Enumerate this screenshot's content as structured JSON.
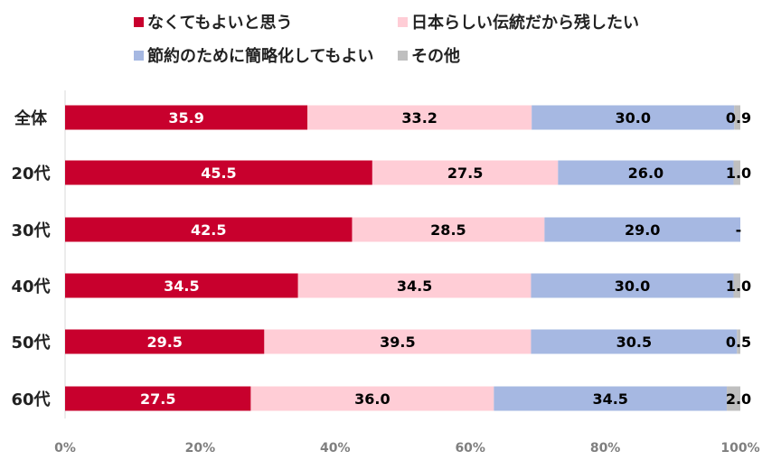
{
  "chart_data": {
    "type": "bar",
    "orientation": "horizontal",
    "stacked": true,
    "categories": [
      "全体",
      "20代",
      "30代",
      "40代",
      "50代",
      "60代"
    ],
    "series": [
      {
        "name": "なくてもよいと思う",
        "color": "#c8002d",
        "label_color": "#ffffff",
        "values": [
          35.9,
          45.5,
          42.5,
          34.5,
          29.5,
          27.5
        ],
        "labels": [
          "35.9",
          "45.5",
          "42.5",
          "34.5",
          "29.5",
          "27.5"
        ]
      },
      {
        "name": "日本らしい伝統だから残したい",
        "color": "#ffcdd6",
        "label_color": "#000000",
        "values": [
          33.2,
          27.5,
          28.5,
          34.5,
          39.5,
          36.0
        ],
        "labels": [
          "33.2",
          "27.5",
          "28.5",
          "34.5",
          "39.5",
          "36.0"
        ]
      },
      {
        "name": "節約のために簡略化してもよい",
        "color": "#a6b8e2",
        "label_color": "#000000",
        "values": [
          30.0,
          26.0,
          29.0,
          30.0,
          30.5,
          34.5
        ],
        "labels": [
          "30.0",
          "26.0",
          "29.0",
          "30.0",
          "30.5",
          "34.5"
        ]
      },
      {
        "name": "その他",
        "color": "#bfbfbf",
        "label_color": "#000000",
        "values": [
          0.9,
          1.0,
          0,
          1.0,
          0.5,
          2.0
        ],
        "labels": [
          "0.9",
          "1.0",
          "-",
          "1.0",
          "0.5",
          "2.0"
        ]
      }
    ],
    "xlim": [
      0,
      100
    ],
    "xticks": [
      "0%",
      "20%",
      "40%",
      "60%",
      "80%",
      "100%"
    ],
    "xlabel": "",
    "ylabel": "",
    "grid": false,
    "legend_position": "top"
  }
}
